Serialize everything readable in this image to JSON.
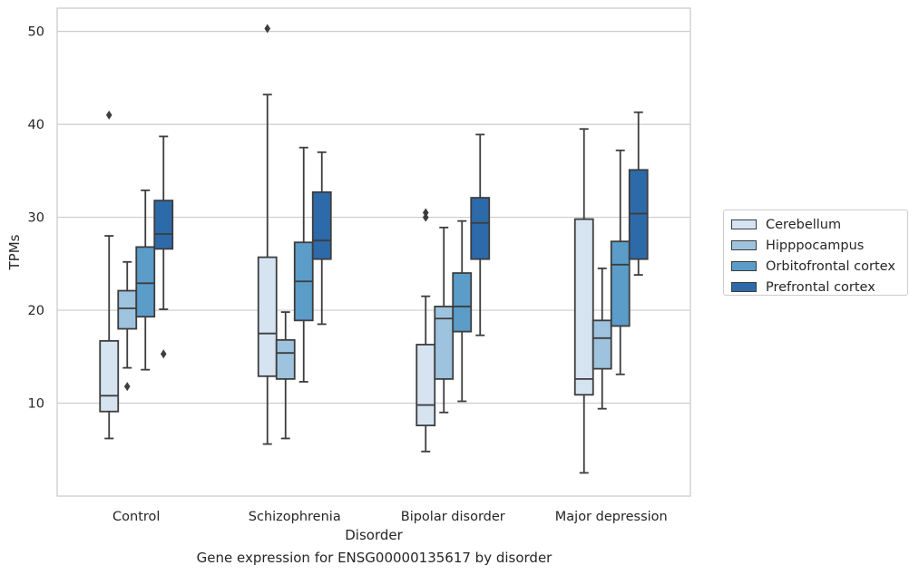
{
  "caption": "Gene expression for ENSG00000135617 by disorder",
  "chart_data": {
    "type": "box",
    "xlabel": "Disorder",
    "ylabel": "TPMs",
    "ylim": [
      0,
      52.5
    ],
    "yticks": [
      10,
      20,
      30,
      40,
      50
    ],
    "grid": "horizontal",
    "legend_position": "right",
    "categories": [
      "Control",
      "Schizophrenia",
      "Bipolar disorder",
      "Major depression"
    ],
    "series": [
      {
        "name": "Cerebellum",
        "color": "#d6e4f2",
        "boxes": [
          {
            "whislo": 6.2,
            "q1": 9.1,
            "med": 10.8,
            "q3": 16.7,
            "whishi": 28.0,
            "fliers": []
          },
          {
            "whislo": 5.6,
            "q1": 12.9,
            "med": 17.5,
            "q3": 25.7,
            "whishi": 43.2,
            "fliers": [
              50.3
            ]
          },
          {
            "whislo": 4.8,
            "q1": 7.6,
            "med": 9.8,
            "q3": 16.3,
            "whishi": 21.5,
            "fliers": []
          },
          {
            "whislo": 2.5,
            "q1": 10.9,
            "med": 12.6,
            "q3": 29.8,
            "whishi": 39.5,
            "fliers": []
          }
        ]
      },
      {
        "name": "Hipppocampus",
        "color": "#9dc3de",
        "boxes": [
          {
            "whislo": 13.8,
            "q1": 18.0,
            "med": 20.2,
            "q3": 22.1,
            "whishi": 25.2,
            "fliers": [
              11.8
            ]
          },
          {
            "whislo": 6.2,
            "q1": 12.6,
            "med": 15.4,
            "q3": 16.8,
            "whishi": 19.8,
            "fliers": []
          },
          {
            "whislo": 9.0,
            "q1": 12.6,
            "med": 19.1,
            "q3": 20.4,
            "whishi": 28.9,
            "fliers": []
          },
          {
            "whislo": 9.4,
            "q1": 13.7,
            "med": 17.0,
            "q3": 18.9,
            "whishi": 24.5,
            "fliers": []
          }
        ]
      },
      {
        "name": "Orbitofrontal cortex",
        "color": "#5b9cc9",
        "boxes": [
          {
            "whislo": 13.6,
            "q1": 19.3,
            "med": 22.9,
            "q3": 26.8,
            "whishi": 32.9,
            "fliers": []
          },
          {
            "whislo": 12.3,
            "q1": 18.9,
            "med": 23.1,
            "q3": 27.3,
            "whishi": 37.5,
            "fliers": []
          },
          {
            "whislo": 10.2,
            "q1": 17.7,
            "med": 20.4,
            "q3": 24.0,
            "whishi": 29.6,
            "fliers": []
          },
          {
            "whislo": 13.1,
            "q1": 18.3,
            "med": 24.9,
            "q3": 27.4,
            "whishi": 37.2,
            "fliers": []
          }
        ]
      },
      {
        "name": "Prefrontal cortex",
        "color": "#2d6aa9",
        "boxes": [
          {
            "whislo": 20.1,
            "q1": 26.6,
            "med": 28.2,
            "q3": 31.8,
            "whishi": 38.7,
            "fliers": [
              15.3
            ]
          },
          {
            "whislo": 18.5,
            "q1": 25.5,
            "med": 27.5,
            "q3": 32.7,
            "whishi": 37.0,
            "fliers": []
          },
          {
            "whislo": 17.3,
            "q1": 25.5,
            "med": 29.4,
            "q3": 32.1,
            "whishi": 38.9,
            "fliers": []
          },
          {
            "whislo": 23.8,
            "q1": 25.5,
            "med": 30.4,
            "q3": 35.1,
            "whishi": 41.3,
            "fliers": []
          }
        ]
      }
    ]
  },
  "extra_fliers": [
    {
      "category_index": 0,
      "series_index": 0,
      "value": 41.0
    },
    {
      "category_index": 2,
      "series_index": 0,
      "value": 30.0
    },
    {
      "category_index": 2,
      "series_index": 0,
      "value": 30.5
    }
  ]
}
